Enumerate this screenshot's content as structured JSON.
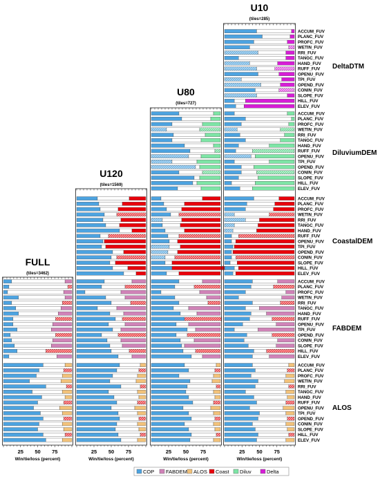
{
  "chart_data": {
    "type": "bar",
    "orientation": "horizontal",
    "stacked": true,
    "x_ticks": [
      "25",
      "50",
      "75"
    ],
    "xlabel": "Win/tie/loss (percent)",
    "xlim": [
      0,
      100
    ],
    "criteria": [
      "ACCUM_FUV",
      "PLANC_FUV",
      "PROFC_FUV",
      "WETIN_FUV",
      "RRI_FUV",
      "TANGC_FUV",
      "HAND_FUV",
      "RUFF_FUV",
      "OPENU_FUV",
      "TPI_FUV",
      "OPEND_FUV",
      "CONIN_FUV",
      "SLOPE_FUV",
      "HILL_FUV",
      "ELEV_FUV"
    ],
    "dems": [
      "DeltaDTM",
      "DiluviumDEM",
      "CoastalDEM",
      "FABDEM",
      "ALOS"
    ],
    "legend": [
      {
        "name": "COP",
        "color": "#4da3e0"
      },
      {
        "name": "FABDEM",
        "color": "#d083b8"
      },
      {
        "name": "ALOS",
        "color": "#f2c27a"
      },
      {
        "name": "Coast",
        "color": "#e8000b"
      },
      {
        "name": "Diluv",
        "color": "#7ee5a6"
      },
      {
        "name": "Delta",
        "color": "#d61ed6"
      }
    ],
    "panels": [
      {
        "title": "FULL",
        "tiles": "(tiles=3462)",
        "groups": {
          "FABDEM": {
            "wins": [
              12,
              8,
              6,
              22,
              12,
              18,
              22,
              14,
              14,
              20,
              10,
              12,
              16,
              20,
              8
            ],
            "losses": [
              10,
              6,
              12,
              10,
              14,
              16,
              20,
              24,
              28,
              30,
              24,
              28,
              30,
              38,
              22
            ]
          },
          "ALOS": {
            "wins": [
              58,
              52,
              48,
              38,
              62,
              42,
              56,
              50,
              44,
              54,
              58,
              52,
              50,
              58,
              62
            ],
            "losses": [
              10,
              12,
              14,
              16,
              8,
              14,
              10,
              12,
              18,
              14,
              12,
              14,
              12,
              10,
              14
            ]
          }
        }
      },
      {
        "title": "U120",
        "tiles": "(tiles=1569)",
        "groups": {
          "CoastalDEM": {
            "wins": [
              30,
              32,
              34,
              40,
              38,
              42,
              62,
              34,
              38,
              36,
              52,
              50,
              48,
              52,
              68
            ],
            "losses": [
              24,
              34,
              40,
              42,
              36,
              38,
              20,
              54,
              60,
              58,
              32,
              42,
              44,
              26,
              14
            ]
          },
          "FABDEM": {
            "wins": [
              40,
              36,
              12,
              42,
              50,
              30,
              48,
              56,
              46,
              52,
              36,
              44,
              48,
              50,
              60
            ],
            "losses": [
              20,
              30,
              36,
              30,
              22,
              42,
              32,
              34,
              30,
              36,
              40,
              36,
              34,
              24,
              20
            ]
          },
          "ALOS": {
            "wins": [
              62,
              58,
              52,
              48,
              64,
              46,
              54,
              58,
              50,
              60,
              62,
              58,
              56,
              60,
              64
            ],
            "losses": [
              8,
              10,
              12,
              14,
              8,
              12,
              10,
              12,
              16,
              12,
              10,
              12,
              10,
              8,
              12
            ]
          }
        }
      },
      {
        "title": "U80",
        "tiles": "(tiles=727)",
        "groups": {
          "DiluviumDEM": {
            "wins": [
              40,
              44,
              30,
              22,
              32,
              30,
              48,
              56,
              54,
              30,
              64,
              40,
              62,
              60,
              38
            ],
            "losses": [
              10,
              14,
              26,
              30,
              22,
              28,
              10,
              8,
              28,
              34,
              30,
              26,
              30,
              34,
              28
            ],
            "hatched_wins": [
              3,
              8,
              9,
              10
            ]
          },
          "CoastalDEM": {
            "wins": [
              14,
              18,
              22,
              28,
              16,
              16,
              20,
              24,
              26,
              26,
              24,
              20,
              20,
              30,
              22
            ],
            "losses": [
              26,
              52,
              56,
              60,
              56,
              58,
              52,
              60,
              62,
              58,
              62,
              66,
              70,
              78,
              60
            ],
            "hatched_wins": [
              4,
              9,
              10,
              11
            ]
          },
          "FABDEM": {
            "wins": [
              40,
              34,
              14,
              34,
              40,
              32,
              42,
              48,
              36,
              52,
              36,
              42,
              44,
              46,
              58
            ],
            "losses": [
              26,
              38,
              30,
              20,
              18,
              46,
              34,
              54,
              46,
              36,
              48,
              38,
              52,
              36,
              26
            ]
          },
          "ALOS": {
            "wins": [
              48,
              54,
              40,
              56,
              52,
              50,
              54,
              60,
              46,
              54,
              58,
              48,
              54,
              58,
              56
            ],
            "losses": [
              6,
              8,
              10,
              12,
              6,
              10,
              8,
              10,
              14,
              10,
              8,
              10,
              8,
              6,
              10
            ]
          }
        }
      },
      {
        "title": "U10",
        "tiles": "(tiles=285)",
        "groups": {
          "DeltaDTM": {
            "wins": [
              46,
              54,
              42,
              36,
              48,
              20,
              36,
              46,
              48,
              24,
              52,
              44,
              46,
              14,
              16
            ],
            "losses": [
              4,
              6,
              10,
              8,
              12,
              12,
              24,
              28,
              22,
              18,
              20,
              22,
              10,
              70,
              72
            ],
            "hatched_wins": [
              4,
              6,
              7,
              9,
              10,
              12
            ]
          },
          "DiluviumDEM": {
            "wins": [
              14,
              30,
              24,
              18,
              22,
              30,
              20,
              16,
              38,
              14,
              24,
              24,
              20,
              10,
              22
            ],
            "losses": [
              10,
              4,
              8,
              20,
              14,
              20,
              36,
              60,
              56,
              36,
              58,
              54,
              52,
              56,
              60
            ],
            "hatched_wins": [
              3,
              8
            ]
          },
          "CoastalDEM": {
            "wins": [
              42,
              32,
              30,
              14,
              30,
              14,
              12,
              10,
              10,
              12,
              10,
              10,
              8,
              14,
              12
            ],
            "losses": [
              22,
              28,
              30,
              36,
              50,
              52,
              54,
              80,
              84,
              86,
              88,
              84,
              82,
              80,
              84
            ],
            "hatched_wins": [
              3,
              4,
              5,
              6
            ]
          },
          "FABDEM": {
            "wins": [
              40,
              38,
              30,
              20,
              40,
              30,
              38,
              36,
              26,
              14,
              32,
              28,
              34,
              42,
              40
            ],
            "losses": [
              24,
              30,
              12,
              18,
              20,
              50,
              40,
              32,
              26,
              52,
              32,
              24,
              26,
              40,
              36
            ]
          },
          "ALOS": {
            "wins": [
              40,
              44,
              38,
              48,
              44,
              30,
              42,
              46,
              36,
              50,
              48,
              40,
              44,
              48,
              46
            ],
            "losses": [
              8,
              10,
              12,
              14,
              8,
              12,
              10,
              12,
              16,
              12,
              10,
              12,
              10,
              8,
              12
            ]
          }
        }
      }
    ]
  }
}
